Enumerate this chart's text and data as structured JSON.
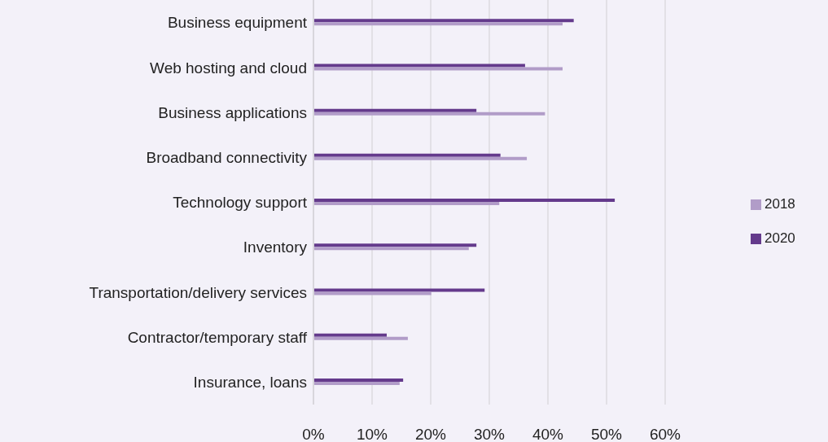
{
  "chart_data": {
    "type": "bar",
    "orientation": "horizontal",
    "categories": [
      "Business equipment",
      "Web hosting and cloud",
      "Business applications",
      "Broadband connectivity",
      "Technology support",
      "Inventory",
      "Transportation/delivery services",
      "Contractor/temporary staff",
      "Insurance, loans"
    ],
    "series": [
      {
        "name": "2020",
        "color": "#643a8c",
        "values": [
          44.4,
          36.1,
          27.8,
          31.9,
          51.4,
          27.8,
          29.2,
          12.5,
          15.3
        ]
      },
      {
        "name": "2018",
        "color": "#b19cc8",
        "values": [
          42.5,
          42.5,
          39.5,
          36.4,
          31.7,
          26.5,
          20.1,
          16.1,
          14.7
        ]
      }
    ],
    "xlim": [
      0,
      60
    ],
    "xticks": [
      {
        "value": 0,
        "label": "0%"
      },
      {
        "value": 10,
        "label": "10%"
      },
      {
        "value": 20,
        "label": "20%"
      },
      {
        "value": 30,
        "label": "30%"
      },
      {
        "value": 40,
        "label": "40%"
      },
      {
        "value": 50,
        "label": "50%"
      },
      {
        "value": 60,
        "label": "60%"
      }
    ],
    "grid": "x",
    "legend": "right"
  }
}
